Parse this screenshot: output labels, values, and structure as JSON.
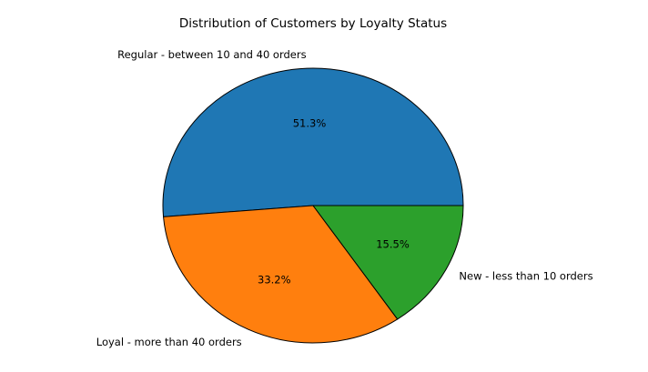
{
  "chart_data": {
    "type": "pie",
    "title": "Distribution of Customers by Loyalty Status",
    "slices": [
      {
        "label": "Regular - between 10 and 40 orders",
        "value": 51.3,
        "pct_label": "51.3%",
        "color": "#1f77b4"
      },
      {
        "label": "Loyal - more than 40 orders",
        "value": 33.2,
        "pct_label": "33.2%",
        "color": "#ff7f0e"
      },
      {
        "label": "New - less than 10 orders",
        "value": 15.5,
        "pct_label": "15.5%",
        "color": "#2ca02c"
      }
    ],
    "start_angle_deg": 0,
    "direction": "counterclockwise",
    "edge_color": "#000000",
    "legend": "none"
  }
}
